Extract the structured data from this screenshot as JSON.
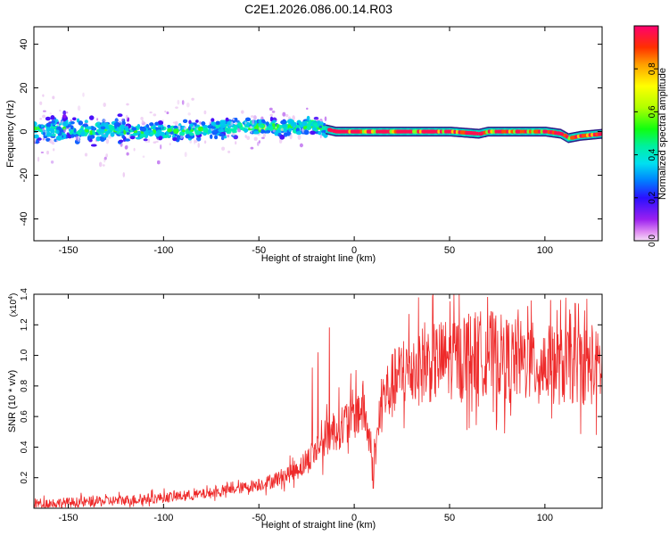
{
  "title": "C2E1.2026.086.00.14.R03",
  "chart_data": [
    {
      "type": "heatmap",
      "xlabel": "Height of straight line (km)",
      "ylabel": "Frequency (Hz)",
      "xlim": [
        -168,
        130
      ],
      "ylim": [
        -50,
        48
      ],
      "xticks": [
        -150,
        -100,
        -50,
        0,
        50,
        100
      ],
      "yticks": [
        -40,
        -20,
        0,
        20,
        40
      ],
      "colorbar": {
        "label": "Normalized spectral amplitude",
        "range": [
          0,
          1
        ],
        "ticks": [
          0.0,
          0.2,
          0.4,
          0.6,
          0.8
        ],
        "tick_labels": [
          "0.0",
          "0.2",
          "0.4",
          "0.6",
          "0.8"
        ]
      },
      "band_centerline": {
        "x": [
          -168,
          -150,
          -120,
          -100,
          -75,
          -55,
          -35,
          -22,
          -15,
          -10,
          0,
          20,
          50,
          65,
          70,
          100,
          108,
          112,
          118,
          130
        ],
        "y": [
          1,
          1,
          0,
          0,
          1,
          2,
          2,
          3,
          1,
          0,
          0,
          0,
          0,
          -1,
          0,
          0,
          -1,
          -3,
          -2,
          -1
        ]
      }
    },
    {
      "type": "line",
      "xlabel": "Height of straight line (km)",
      "ylabel": "SNR (10 * v/v)",
      "y_multiplier": "(x10",
      "y_multiplier_exp": "4",
      "y_multiplier_close": ")",
      "xlim": [
        -168,
        130
      ],
      "ylim": [
        0,
        1.4
      ],
      "xticks": [
        -150,
        -100,
        -50,
        0,
        50,
        100
      ],
      "yticks": [
        0.2,
        0.4,
        0.6,
        0.8,
        1.0,
        1.2,
        1.4
      ],
      "ytick_labels": [
        "0.2",
        "0.4",
        "0.6",
        "0.8",
        "1.0",
        "1.2",
        "1.4"
      ],
      "series": [
        {
          "name": "SNR",
          "color": "#ee2a2a",
          "trend_x": [
            -168,
            -140,
            -110,
            -80,
            -60,
            -45,
            -35,
            -25,
            -18,
            -10,
            -5,
            0,
            5,
            10,
            15,
            20,
            25,
            30,
            40,
            50,
            60,
            70,
            80,
            90,
            100,
            110,
            120,
            130
          ],
          "trend_y": [
            0.03,
            0.04,
            0.06,
            0.09,
            0.13,
            0.17,
            0.22,
            0.3,
            0.42,
            0.52,
            0.55,
            0.62,
            0.66,
            0.28,
            0.72,
            0.8,
            0.88,
            0.92,
            0.95,
            0.98,
            1.0,
            1.02,
            0.98,
            0.96,
            0.94,
            0.93,
            0.95,
            0.9
          ],
          "peaks": [
            {
              "x": -22,
              "y": 0.92
            },
            {
              "x": -19,
              "y": 1.02
            },
            {
              "x": -13,
              "y": 1.18
            },
            {
              "x": 10,
              "y": 0.13
            },
            {
              "x": 60,
              "y": 1.27
            },
            {
              "x": 70,
              "y": 1.38
            },
            {
              "x": 91,
              "y": 1.32
            },
            {
              "x": 103,
              "y": 1.36
            },
            {
              "x": 113,
              "y": 1.3
            },
            {
              "x": 122,
              "y": 1.37
            },
            {
              "x": 127,
              "y": 0.48
            }
          ]
        }
      ]
    }
  ]
}
